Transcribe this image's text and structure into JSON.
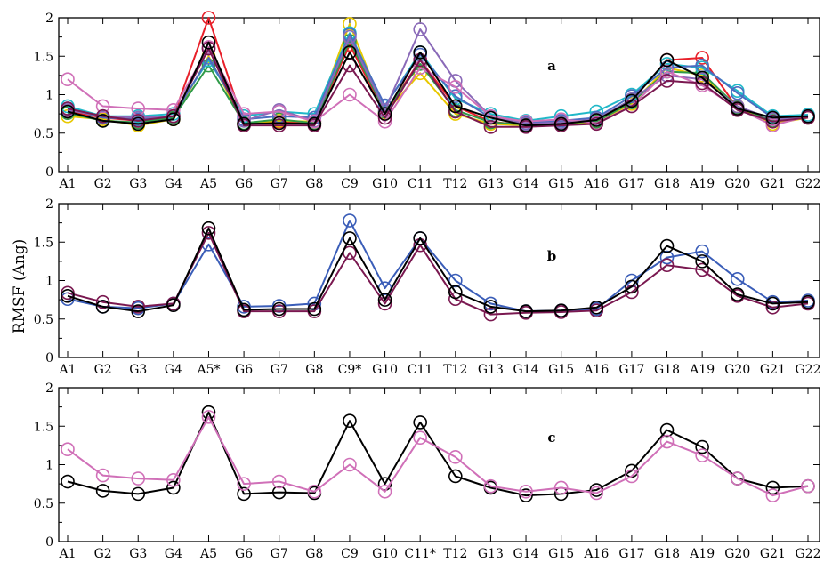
{
  "chart_data": {
    "type": "line",
    "ylabel": "RMSF (Ang)",
    "panels": [
      {
        "label": "a",
        "categories": [
          "A1",
          "G2",
          "G3",
          "G4",
          "A5",
          "G6",
          "G7",
          "G8",
          "C9",
          "G10",
          "C11",
          "T12",
          "G13",
          "G14",
          "G15",
          "A16",
          "G17",
          "G18",
          "A19",
          "G20",
          "G21",
          "G22"
        ],
        "ylim": [
          0,
          2
        ],
        "yticks": [
          "0",
          "0.5",
          "1",
          "1.5",
          "2"
        ],
        "series": [
          {
            "color": "#e8202a",
            "values": [
              0.78,
              0.7,
              0.66,
              0.72,
              2.0,
              0.62,
              0.65,
              0.62,
              1.65,
              0.75,
              1.45,
              0.85,
              0.65,
              0.6,
              0.62,
              0.63,
              0.92,
              1.45,
              1.48,
              0.82,
              0.65,
              0.7
            ]
          },
          {
            "color": "#e8c800",
            "values": [
              0.72,
              0.68,
              0.6,
              0.68,
              1.5,
              0.62,
              0.66,
              0.65,
              1.92,
              0.76,
              1.28,
              0.75,
              0.62,
              0.6,
              0.62,
              0.65,
              0.88,
              1.35,
              1.25,
              0.85,
              0.62,
              0.7
            ]
          },
          {
            "color": "#2f9a48",
            "values": [
              0.76,
              0.66,
              0.64,
              0.7,
              1.38,
              0.63,
              0.68,
              0.63,
              1.7,
              0.78,
              1.4,
              0.8,
              0.64,
              0.61,
              0.63,
              0.65,
              0.9,
              1.3,
              1.28,
              0.84,
              0.66,
              0.72
            ]
          },
          {
            "color": "#20b8c8",
            "values": [
              0.85,
              0.72,
              0.72,
              0.75,
              1.45,
              0.72,
              0.78,
              0.75,
              1.8,
              0.85,
              1.55,
              0.95,
              0.75,
              0.66,
              0.72,
              0.78,
              1.0,
              1.4,
              1.35,
              1.05,
              0.72,
              0.74
            ]
          },
          {
            "color": "#4c6cc0",
            "values": [
              0.82,
              0.7,
              0.68,
              0.72,
              1.48,
              0.68,
              0.72,
              0.7,
              1.78,
              0.86,
              1.52,
              0.98,
              0.7,
              0.63,
              0.66,
              0.7,
              0.98,
              1.35,
              1.38,
              1.02,
              0.7,
              0.72
            ]
          },
          {
            "color": "#8a6ab8",
            "values": [
              0.8,
              0.72,
              0.7,
              0.72,
              1.6,
              0.66,
              0.8,
              0.66,
              1.75,
              0.8,
              1.85,
              1.18,
              0.72,
              0.62,
              0.64,
              0.68,
              0.94,
              1.25,
              1.2,
              0.85,
              0.68,
              0.7
            ]
          },
          {
            "color": "#d070b8",
            "values": [
              1.2,
              0.85,
              0.82,
              0.8,
              1.62,
              0.75,
              0.78,
              0.65,
              1.0,
              0.65,
              1.35,
              1.1,
              0.72,
              0.65,
              0.68,
              0.63,
              0.85,
              1.3,
              1.12,
              0.82,
              0.6,
              0.72
            ]
          },
          {
            "color": "#7a1850",
            "values": [
              0.82,
              0.72,
              0.66,
              0.72,
              1.6,
              0.6,
              0.6,
              0.6,
              1.38,
              0.7,
              1.45,
              0.78,
              0.58,
              0.58,
              0.6,
              0.62,
              0.85,
              1.18,
              1.15,
              0.8,
              0.65,
              0.7
            ]
          },
          {
            "color": "#000000",
            "values": [
              0.78,
              0.66,
              0.62,
              0.68,
              1.68,
              0.62,
              0.63,
              0.62,
              1.55,
              0.75,
              1.55,
              0.85,
              0.7,
              0.6,
              0.62,
              0.67,
              0.92,
              1.45,
              1.22,
              0.82,
              0.7,
              0.72
            ]
          }
        ]
      },
      {
        "label": "b",
        "categories": [
          "A1",
          "G2",
          "G3",
          "G4",
          "A5*",
          "G6",
          "G7",
          "G8",
          "C9*",
          "G10",
          "C11",
          "T12",
          "G13",
          "G14",
          "G15",
          "A16",
          "G17",
          "G18",
          "A19",
          "G20",
          "G21",
          "G22"
        ],
        "ylim": [
          0,
          2
        ],
        "yticks": [
          "0",
          "0.5",
          "1",
          "1.5",
          "2"
        ],
        "series": [
          {
            "color": "#3a5db8",
            "values": [
              0.76,
              0.66,
              0.64,
              0.7,
              1.47,
              0.66,
              0.67,
              0.7,
              1.78,
              0.9,
              1.55,
              1.0,
              0.7,
              0.6,
              0.61,
              0.63,
              1.0,
              1.3,
              1.38,
              1.02,
              0.72,
              0.74
            ]
          },
          {
            "color": "#7a1850",
            "values": [
              0.84,
              0.72,
              0.66,
              0.7,
              1.62,
              0.6,
              0.6,
              0.6,
              1.36,
              0.7,
              1.46,
              0.76,
              0.56,
              0.58,
              0.59,
              0.61,
              0.85,
              1.2,
              1.14,
              0.8,
              0.65,
              0.7
            ]
          },
          {
            "color": "#000000",
            "values": [
              0.8,
              0.66,
              0.6,
              0.68,
              1.68,
              0.62,
              0.63,
              0.63,
              1.55,
              0.75,
              1.55,
              0.85,
              0.66,
              0.6,
              0.61,
              0.65,
              0.92,
              1.45,
              1.25,
              0.82,
              0.7,
              0.72
            ]
          }
        ]
      },
      {
        "label": "c",
        "categories": [
          "A1",
          "G2",
          "G3",
          "G4",
          "A5",
          "G6",
          "G7",
          "G8",
          "C9",
          "G10",
          "C11*",
          "T12",
          "G13",
          "G14",
          "G15",
          "A16",
          "G17",
          "G18",
          "A19",
          "G20",
          "G21",
          "G22"
        ],
        "ylim": [
          0,
          2
        ],
        "yticks": [
          "0",
          "0.5",
          "1",
          "1.5",
          "2"
        ],
        "series": [
          {
            "color": "#000000",
            "values": [
              0.78,
              0.66,
              0.62,
              0.7,
              1.68,
              0.62,
              0.64,
              0.63,
              1.57,
              0.75,
              1.55,
              0.85,
              0.7,
              0.6,
              0.62,
              0.67,
              0.92,
              1.45,
              1.23,
              0.82,
              0.7,
              0.72
            ]
          },
          {
            "color": "#d070b8",
            "values": [
              1.2,
              0.86,
              0.82,
              0.8,
              1.62,
              0.75,
              0.78,
              0.65,
              1.0,
              0.65,
              1.35,
              1.1,
              0.72,
              0.65,
              0.7,
              0.63,
              0.85,
              1.3,
              1.12,
              0.82,
              0.6,
              0.72
            ]
          }
        ]
      }
    ]
  }
}
